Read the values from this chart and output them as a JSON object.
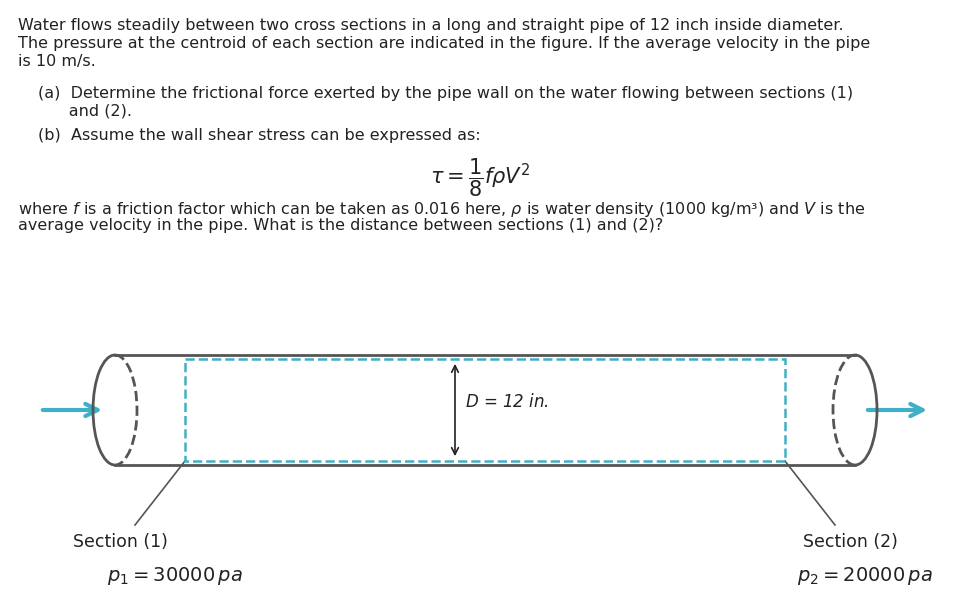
{
  "bg_color": "#ffffff",
  "para1_line1": "Water flows steadily between two cross sections in a long and straight pipe of 12 inch inside diameter.",
  "para1_line2": "The pressure at the centroid of each section are indicated in the figure. If the average velocity in the pipe",
  "para1_line3": "is 10 m/s.",
  "item_a_line1": "(a)  Determine the frictional force exerted by the pipe wall on the water flowing between sections (1)",
  "item_a_line2": "      and (2).",
  "item_b": "(b)  Assume the wall shear stress can be expressed as:",
  "formula": "$\\tau = \\dfrac{1}{8} f \\rho V^2$",
  "para2_line1": "where $f$ is a friction factor which can be taken as 0.016 here, $\\rho$ is water density (1000 kg/m³) and $V$ is the",
  "para2_line2": "average velocity in the pipe. What is the distance between sections (1) and (2)?",
  "D_label": "$D$ = 12 in.",
  "section1_label": "Section (1)",
  "section2_label": "Section (2)",
  "p1_label": "$p_1=30000\\,pa$",
  "p2_label": "$p_2=20000\\,pa$",
  "pipe_color": "#555555",
  "dash_color": "#40b0c8",
  "arrow_color": "#40b0c8",
  "text_color": "#222222"
}
